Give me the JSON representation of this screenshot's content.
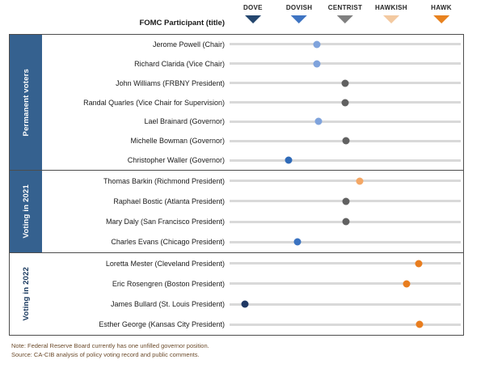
{
  "header": {
    "participant_label": "FOMC Participant (title)",
    "categories": [
      {
        "label": "DOVE",
        "color": "#24466E",
        "pct": 10.1
      },
      {
        "label": "DOVISH",
        "color": "#3E74C2",
        "pct": 30.1
      },
      {
        "label": "CENTRIST",
        "color": "#808080",
        "pct": 50.0
      },
      {
        "label": "HAWKISH",
        "color": "#F3C9A0",
        "pct": 69.9
      },
      {
        "label": "HAWK",
        "color": "#E8821F",
        "pct": 91.6
      }
    ]
  },
  "chart_data": {
    "type": "scatter",
    "x_scale_labels": [
      "DOVE",
      "DOVISH",
      "CENTRIST",
      "HAWKISH",
      "HAWK"
    ],
    "x_scale_values": [
      1,
      2,
      3,
      4,
      5
    ],
    "legend_position": "top",
    "groups": [
      {
        "label": "Permanent voters",
        "sidebar_style": "blue",
        "rows": [
          {
            "name": "Jerome Powell (Chair)",
            "score": 2.4,
            "pct": 37.8,
            "color": "#7FA3DC",
            "stance": "leans-dovish"
          },
          {
            "name": "Richard Clarida (Vice Chair)",
            "score": 2.4,
            "pct": 37.8,
            "color": "#7FA3DC",
            "stance": "leans-dovish"
          },
          {
            "name": "John Williams (FRBNY President)",
            "score": 3.0,
            "pct": 50.0,
            "color": "#616161",
            "stance": "centrist"
          },
          {
            "name": "Randal Quarles (Vice Chair for Supervision)",
            "score": 3.0,
            "pct": 50.0,
            "color": "#616161",
            "stance": "centrist"
          },
          {
            "name": "Lael Brainard (Governor)",
            "score": 2.4,
            "pct": 38.5,
            "color": "#7FA3DC",
            "stance": "leans-dovish"
          },
          {
            "name": "Michelle Bowman (Governor)",
            "score": 3.0,
            "pct": 50.3,
            "color": "#616161",
            "stance": "centrist"
          },
          {
            "name": "Christopher Waller (Governor)",
            "score": 1.8,
            "pct": 25.5,
            "color": "#2F6AB8",
            "stance": "dovish"
          }
        ]
      },
      {
        "label": "Voting in 2021",
        "sidebar_style": "blue",
        "rows": [
          {
            "name": "Thomas Barkin (Richmond President)",
            "score": 3.3,
            "pct": 56.3,
            "color": "#F4A765",
            "stance": "leans-hawkish"
          },
          {
            "name": "Raphael Bostic (Atlanta President)",
            "score": 3.0,
            "pct": 50.3,
            "color": "#616161",
            "stance": "centrist"
          },
          {
            "name": "Mary Daly (San Francisco President)",
            "score": 3.0,
            "pct": 50.3,
            "color": "#616161",
            "stance": "centrist"
          },
          {
            "name": "Charles Evans (Chicago President)",
            "score": 2.0,
            "pct": 29.4,
            "color": "#3B73C1",
            "stance": "dovish"
          }
        ]
      },
      {
        "label": "Voting in 2022",
        "sidebar_style": "white",
        "rows": [
          {
            "name": "Loretta Mester (Cleveland President)",
            "score": 4.6,
            "pct": 81.8,
            "color": "#E87D1E",
            "stance": "hawkish"
          },
          {
            "name": "Eric Rosengren (Boston President)",
            "score": 4.3,
            "pct": 76.6,
            "color": "#E87D1E",
            "stance": "hawkish"
          },
          {
            "name": "James Bullard (St. Louis President)",
            "score": 0.8,
            "pct": 6.6,
            "color": "#1F3864",
            "stance": "dove"
          },
          {
            "name": "Esther George (Kansas City President)",
            "score": 4.6,
            "pct": 82.2,
            "color": "#E87D1E",
            "stance": "hawkish"
          }
        ]
      }
    ]
  },
  "notes": {
    "note": "Note: Federal Reserve Board currently has one unfilled governor position.",
    "source": "Source: CA-CIB analysis of policy voting record and public comments."
  }
}
